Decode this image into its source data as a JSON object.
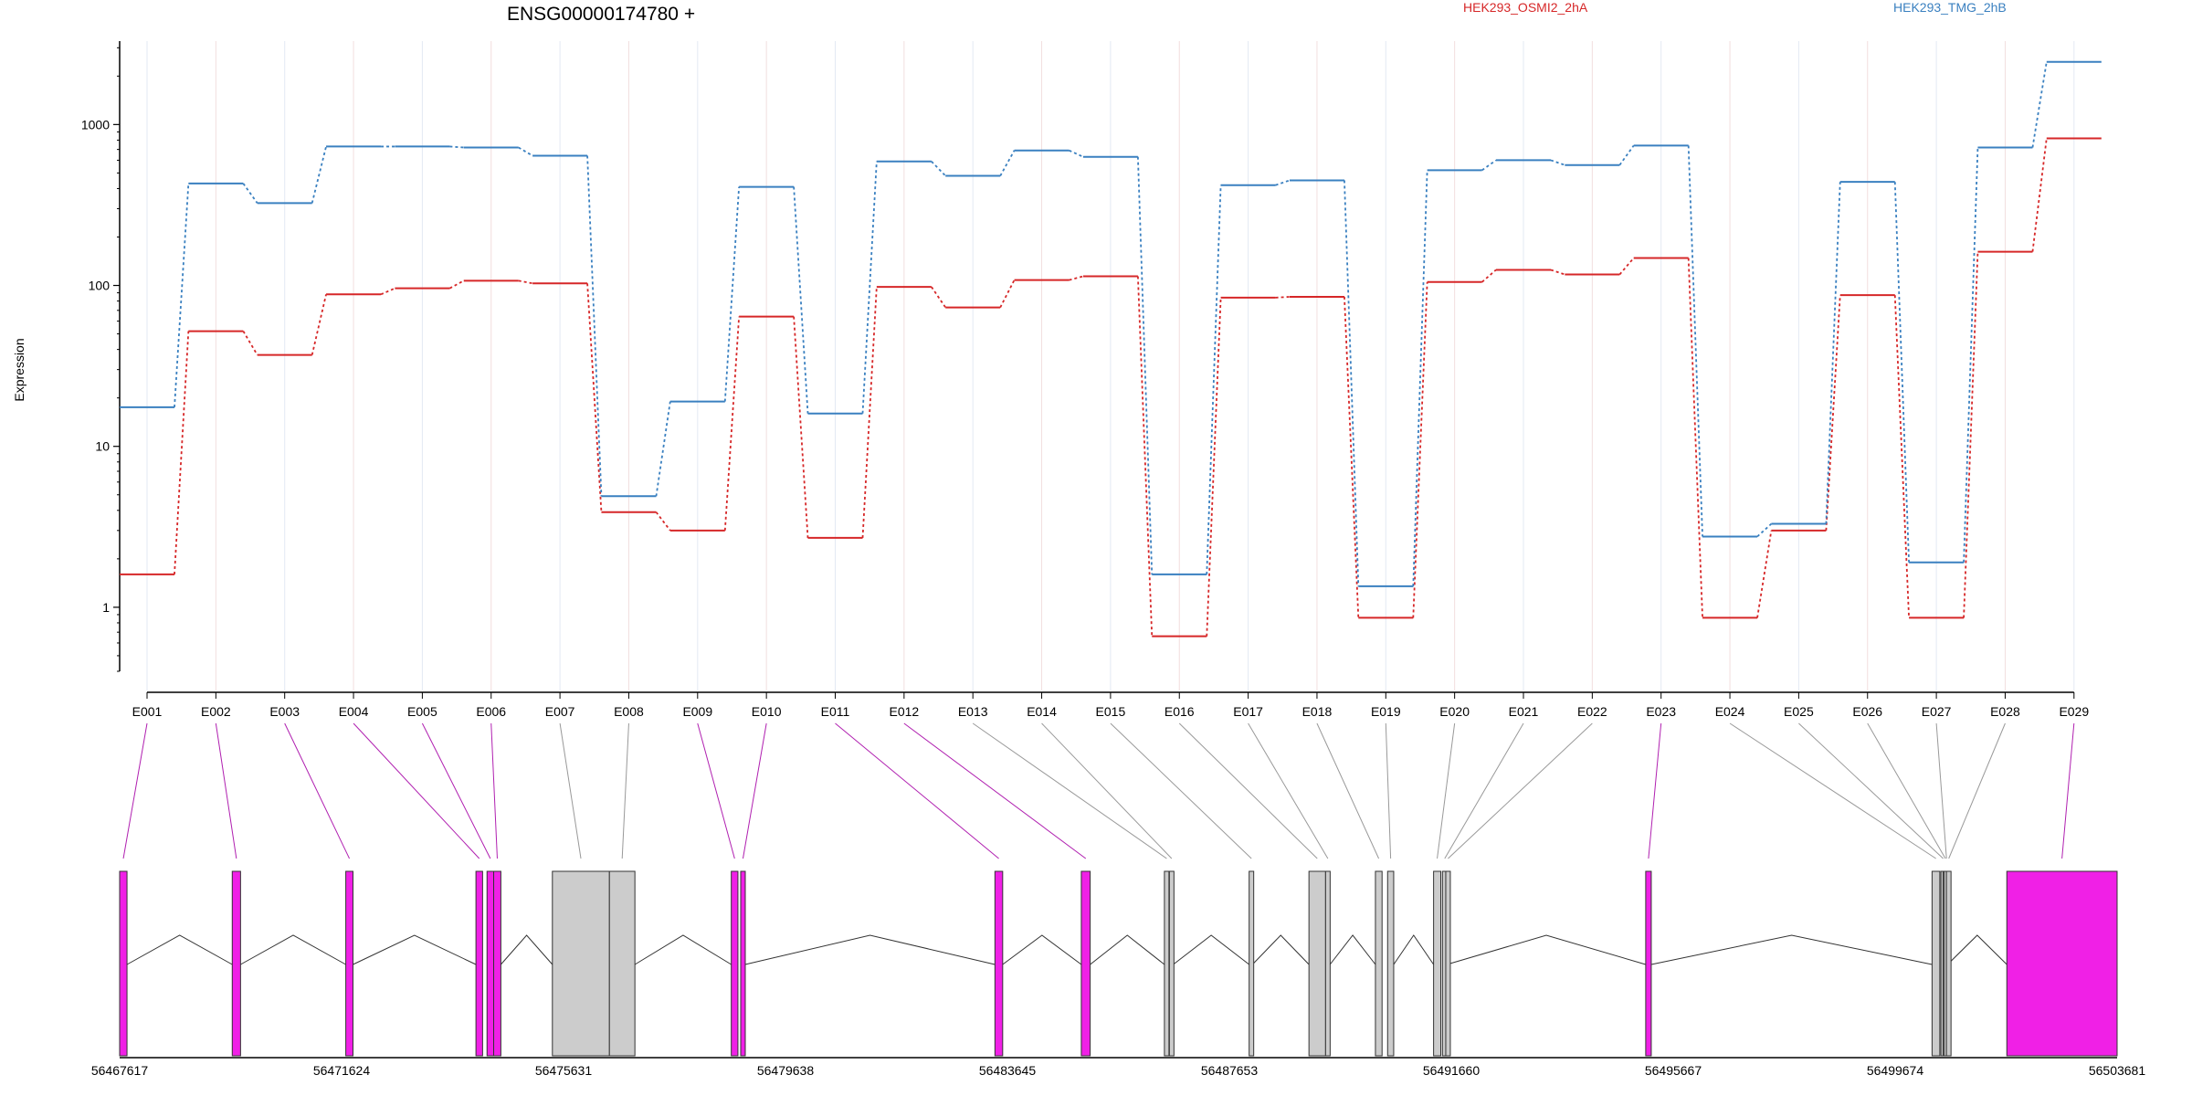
{
  "chart_data": {
    "type": "line",
    "title": "ENSG00000174780 +",
    "ylabel": "Expression",
    "xlabel": "",
    "yscale": "log",
    "ylim": [
      0.4,
      3300
    ],
    "yticks": [
      1,
      10,
      100,
      1000
    ],
    "ytick_labels": [
      "1",
      "10",
      "100",
      "1000"
    ],
    "categories": [
      "E001",
      "E002",
      "E003",
      "E004",
      "E005",
      "E006",
      "E007",
      "E008",
      "E009",
      "E010",
      "E011",
      "E012",
      "E013",
      "E014",
      "E015",
      "E016",
      "E017",
      "E018",
      "E019",
      "E020",
      "E021",
      "E022",
      "E023",
      "E024",
      "E025",
      "E026",
      "E027",
      "E028",
      "E029"
    ],
    "grid": "vertical",
    "series": [
      {
        "name": "HEK293_OSMI2_2hA",
        "color": "#d62728",
        "values": [
          1.6,
          52,
          37,
          88,
          96,
          107,
          103,
          3.9,
          3.0,
          64,
          2.7,
          98,
          73,
          108,
          114,
          0.66,
          84,
          85,
          0.86,
          105,
          125,
          117,
          148,
          0.86,
          3.0,
          87,
          0.86,
          162,
          820
        ]
      },
      {
        "name": "HEK293_TMG_2hB",
        "color": "#3a80c0",
        "values": [
          17.5,
          430,
          325,
          730,
          730,
          720,
          640,
          4.9,
          19,
          410,
          16,
          590,
          480,
          690,
          630,
          1.6,
          420,
          450,
          1.35,
          520,
          600,
          560,
          740,
          2.75,
          3.3,
          440,
          1.9,
          720,
          2450
        ]
      }
    ],
    "legend_placement": "top",
    "gene_model": {
      "coordinate_labels": [
        "56467617",
        "56471624",
        "56475631",
        "56479638",
        "56483645",
        "56487653",
        "56491660",
        "56495667",
        "56499674",
        "56503681"
      ],
      "range": [
        56467617,
        56503681
      ],
      "highlight_color": "#f020e6",
      "normal_color": "#cccccc",
      "exons": [
        {
          "id": "E001",
          "start": 56467617,
          "end": 56467750,
          "highlight": true
        },
        {
          "id": "E002",
          "start": 56469650,
          "end": 56469800,
          "highlight": true
        },
        {
          "id": "E003",
          "start": 56471700,
          "end": 56471830,
          "highlight": true
        },
        {
          "id": "E004",
          "start": 56474050,
          "end": 56474170,
          "highlight": true
        },
        {
          "id": "E005",
          "start": 56474250,
          "end": 56474370,
          "highlight": true
        },
        {
          "id": "E006",
          "start": 56474370,
          "end": 56474500,
          "highlight": true
        },
        {
          "id": "E007",
          "start": 56475430,
          "end": 56476460,
          "highlight": false
        },
        {
          "id": "E008",
          "start": 56476460,
          "end": 56476920,
          "highlight": false
        },
        {
          "id": "E009",
          "start": 56478660,
          "end": 56478780,
          "highlight": true
        },
        {
          "id": "E010",
          "start": 56478830,
          "end": 56478910,
          "highlight": true
        },
        {
          "id": "E011",
          "start": 56483420,
          "end": 56483560,
          "highlight": true
        },
        {
          "id": "E012",
          "start": 56484980,
          "end": 56485140,
          "highlight": true
        },
        {
          "id": "E013",
          "start": 56486480,
          "end": 56486530,
          "highlight": false
        },
        {
          "id": "E014",
          "start": 56486570,
          "end": 56486640,
          "highlight": false
        },
        {
          "id": "E015",
          "start": 56488010,
          "end": 56488070,
          "highlight": false
        },
        {
          "id": "E016",
          "start": 56489090,
          "end": 56489390,
          "highlight": false
        },
        {
          "id": "E017",
          "start": 56489390,
          "end": 56489470,
          "highlight": false
        },
        {
          "id": "E018",
          "start": 56490290,
          "end": 56490410,
          "highlight": false
        },
        {
          "id": "E019",
          "start": 56490510,
          "end": 56490620,
          "highlight": false
        },
        {
          "id": "E020",
          "start": 56491340,
          "end": 56491470,
          "highlight": false
        },
        {
          "id": "E021",
          "start": 56491500,
          "end": 56491560,
          "highlight": false
        },
        {
          "id": "E022",
          "start": 56491560,
          "end": 56491580,
          "highlight": false
        },
        {
          "id": "E023",
          "start": 56495170,
          "end": 56495270,
          "highlight": true
        },
        {
          "id": "E024",
          "start": 56500340,
          "end": 56500480,
          "highlight": false
        },
        {
          "id": "E025",
          "start": 56500500,
          "end": 56500540,
          "highlight": false
        },
        {
          "id": "E026",
          "start": 56500540,
          "end": 56500560,
          "highlight": false
        },
        {
          "id": "E027",
          "start": 56500560,
          "end": 56500580,
          "highlight": false
        },
        {
          "id": "E028",
          "start": 56500600,
          "end": 56500620,
          "highlight": false
        },
        {
          "id": "E029",
          "start": 56501690,
          "end": 56503681,
          "highlight": true
        }
      ]
    }
  }
}
